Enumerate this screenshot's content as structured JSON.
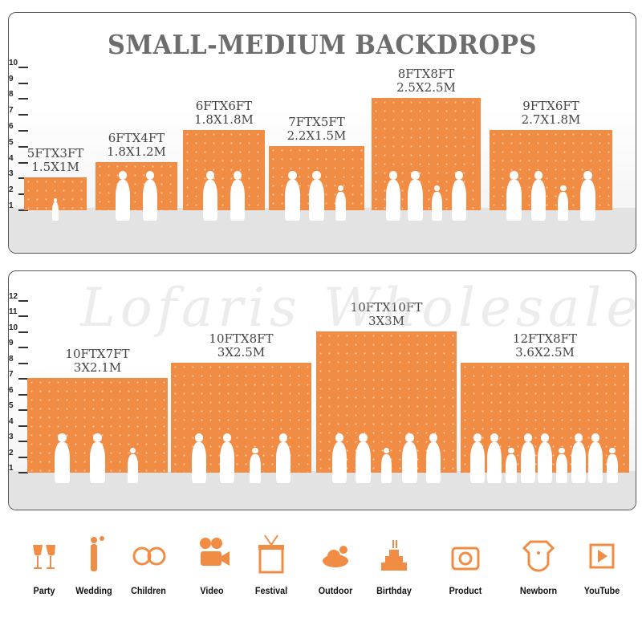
{
  "title": "SMALL-MEDIUM BACKDROPS",
  "watermark": "Lofaris Wholesale",
  "accent_color": "#f18c44",
  "panels": [
    {
      "ticks": [
        "1",
        "2",
        "3",
        "4",
        "5",
        "6",
        "7",
        "8",
        "9",
        "10"
      ],
      "backdrops": [
        {
          "ft": "5FTX3FT",
          "m": "1.5X1M",
          "width_ft": 5,
          "height_ft": 3,
          "people": 1
        },
        {
          "ft": "6FTX4FT",
          "m": "1.8X1.2M",
          "width_ft": 6,
          "height_ft": 4,
          "people": 2
        },
        {
          "ft": "6FTX6FT",
          "m": "1.8X1.8M",
          "width_ft": 6,
          "height_ft": 6,
          "people": 2
        },
        {
          "ft": "7FTX5FT",
          "m": "2.2X1.5M",
          "width_ft": 7,
          "height_ft": 5,
          "people": 3
        },
        {
          "ft": "8FTX8FT",
          "m": "2.5X2.5M",
          "width_ft": 8,
          "height_ft": 8,
          "people": 4
        },
        {
          "ft": "9FTX6FT",
          "m": "2.7X1.8M",
          "width_ft": 9,
          "height_ft": 6,
          "people": 4
        }
      ]
    },
    {
      "ticks": [
        "1",
        "2",
        "3",
        "4",
        "5",
        "6",
        "7",
        "8",
        "9",
        "10",
        "11",
        "12"
      ],
      "backdrops": [
        {
          "ft": "10FTX7FT",
          "m": "3X2.1M",
          "width_ft": 10,
          "height_ft": 7,
          "people": 3
        },
        {
          "ft": "10FTX8FT",
          "m": "3X2.5M",
          "width_ft": 10,
          "height_ft": 8,
          "people": 4
        },
        {
          "ft": "10FTX10FT",
          "m": "3X3M",
          "width_ft": 10,
          "height_ft": 10,
          "people": 5
        },
        {
          "ft": "12FTX8FT",
          "m": "3.6X2.5M",
          "width_ft": 12,
          "height_ft": 8,
          "people": 9
        }
      ]
    }
  ],
  "uses": [
    {
      "label": "Party",
      "icon": "champagne-glasses-icon"
    },
    {
      "label": "Wedding",
      "icon": "wedding-couple-icon"
    },
    {
      "label": "Children",
      "icon": "children-faces-icon"
    },
    {
      "label": "Video",
      "icon": "film-camera-icon"
    },
    {
      "label": "Festival",
      "icon": "gift-box-icon"
    },
    {
      "label": "Outdoor",
      "icon": "cloud-icon"
    },
    {
      "label": "Birthday",
      "icon": "birthday-cake-icon"
    },
    {
      "label": "Product",
      "icon": "camera-icon"
    },
    {
      "label": "Newborn",
      "icon": "baby-onesie-icon"
    },
    {
      "label": "YouTube",
      "icon": "play-button-icon"
    }
  ]
}
